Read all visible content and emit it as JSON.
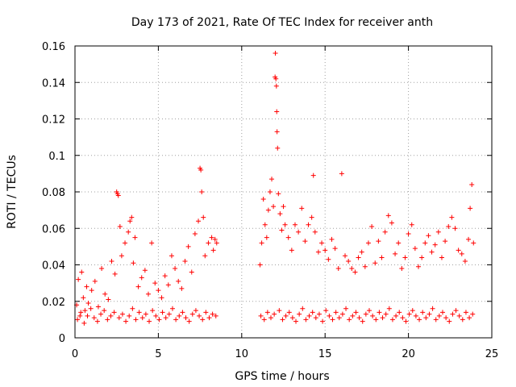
{
  "chart_data": {
    "type": "scatter",
    "title": "Day 173 of 2021, Rate Of TEC Index for receiver anth",
    "xlabel": "GPS time / hours",
    "ylabel": "ROTI / TECUs",
    "xlim": [
      0,
      25
    ],
    "ylim": [
      0,
      0.16
    ],
    "xticks": [
      0,
      5,
      10,
      15,
      20,
      25
    ],
    "xtick_labels": [
      "0",
      "5",
      "10",
      "15",
      "20",
      "25"
    ],
    "yticks": [
      0,
      0.02,
      0.04,
      0.06,
      0.08,
      0.1,
      0.12,
      0.14,
      0.16
    ],
    "ytick_labels": [
      "0",
      "0.02",
      "0.04",
      "0.06",
      "0.08",
      "0.1",
      "0.12",
      "0.14",
      "0.16"
    ],
    "grid": true,
    "marker": "+",
    "series": [
      {
        "name": "ROTI",
        "color": "#ff0000",
        "x": [
          0.1,
          0.2,
          0.3,
          0.4,
          0.5,
          0.6,
          0.7,
          0.8,
          1.0,
          1.2,
          1.4,
          1.6,
          1.8,
          2.0,
          2.2,
          2.4,
          2.5,
          2.55,
          2.6,
          2.7,
          2.8,
          3.0,
          3.2,
          3.3,
          3.4,
          3.5,
          3.6,
          3.8,
          4.0,
          4.2,
          4.4,
          4.6,
          4.8,
          5.0,
          5.2,
          5.4,
          5.6,
          5.8,
          6.0,
          6.2,
          6.4,
          6.6,
          6.8,
          7.0,
          7.2,
          7.4,
          7.5,
          7.55,
          7.6,
          7.7,
          7.8,
          8.0,
          8.2,
          8.3,
          8.4,
          8.5,
          0.15,
          0.35,
          0.55,
          0.75,
          0.95,
          1.15,
          1.35,
          1.55,
          1.75,
          1.95,
          2.15,
          2.35,
          2.65,
          2.85,
          3.05,
          3.25,
          3.45,
          3.65,
          3.85,
          4.05,
          4.25,
          4.45,
          4.65,
          4.85,
          5.05,
          5.25,
          5.45,
          5.65,
          5.85,
          6.05,
          6.25,
          6.45,
          6.65,
          6.85,
          7.05,
          7.25,
          7.45,
          7.65,
          7.85,
          8.05,
          8.25,
          8.45,
          11.1,
          11.2,
          11.3,
          11.4,
          11.5,
          11.6,
          11.7,
          11.8,
          11.9,
          12.0,
          12.02,
          12.05,
          12.08,
          12.1,
          12.12,
          12.15,
          12.2,
          12.3,
          12.4,
          12.5,
          12.6,
          12.8,
          13.0,
          13.2,
          13.4,
          13.6,
          13.8,
          14.0,
          14.2,
          14.3,
          14.4,
          14.6,
          14.8,
          15.0,
          15.2,
          15.4,
          15.6,
          15.8,
          16.0,
          16.2,
          16.4,
          16.6,
          16.8,
          17.0,
          17.2,
          17.4,
          17.6,
          17.8,
          18.0,
          18.2,
          18.4,
          18.6,
          18.8,
          19.0,
          19.2,
          19.4,
          19.6,
          19.8,
          20.0,
          20.2,
          20.4,
          20.6,
          20.8,
          21.0,
          21.2,
          21.4,
          21.6,
          21.8,
          22.0,
          22.2,
          22.4,
          22.6,
          22.8,
          23.0,
          23.2,
          23.4,
          23.6,
          23.7,
          23.8,
          23.9,
          11.15,
          11.35,
          11.55,
          11.75,
          11.95,
          12.25,
          12.45,
          12.65,
          12.85,
          13.05,
          13.25,
          13.45,
          13.65,
          13.85,
          14.05,
          14.25,
          14.45,
          14.65,
          14.85,
          15.05,
          15.25,
          15.45,
          15.65,
          15.85,
          16.05,
          16.25,
          16.45,
          16.65,
          16.85,
          17.05,
          17.25,
          17.45,
          17.65,
          17.85,
          18.05,
          18.25,
          18.45,
          18.65,
          18.85,
          19.05,
          19.25,
          19.45,
          19.65,
          19.85,
          20.05,
          20.25,
          20.45,
          20.65,
          20.85,
          21.05,
          21.25,
          21.45,
          21.65,
          21.85,
          22.05,
          22.25,
          22.45,
          22.65,
          22.85,
          23.05,
          23.25,
          23.45,
          23.65,
          23.85
        ],
        "y": [
          0.018,
          0.032,
          0.012,
          0.036,
          0.022,
          0.015,
          0.028,
          0.019,
          0.026,
          0.031,
          0.017,
          0.038,
          0.024,
          0.021,
          0.042,
          0.035,
          0.08,
          0.079,
          0.078,
          0.061,
          0.045,
          0.052,
          0.058,
          0.064,
          0.066,
          0.041,
          0.055,
          0.028,
          0.033,
          0.037,
          0.024,
          0.052,
          0.03,
          0.026,
          0.022,
          0.034,
          0.029,
          0.045,
          0.038,
          0.031,
          0.027,
          0.042,
          0.05,
          0.036,
          0.057,
          0.064,
          0.093,
          0.092,
          0.08,
          0.066,
          0.045,
          0.052,
          0.055,
          0.048,
          0.054,
          0.052,
          0.01,
          0.014,
          0.008,
          0.012,
          0.016,
          0.011,
          0.009,
          0.013,
          0.015,
          0.01,
          0.012,
          0.014,
          0.011,
          0.013,
          0.009,
          0.012,
          0.016,
          0.01,
          0.014,
          0.011,
          0.013,
          0.009,
          0.015,
          0.012,
          0.01,
          0.014,
          0.011,
          0.013,
          0.016,
          0.01,
          0.012,
          0.014,
          0.011,
          0.009,
          0.013,
          0.015,
          0.012,
          0.01,
          0.014,
          0.011,
          0.013,
          0.012,
          0.04,
          0.052,
          0.076,
          0.062,
          0.055,
          0.07,
          0.08,
          0.087,
          0.072,
          0.143,
          0.156,
          0.142,
          0.138,
          0.124,
          0.113,
          0.104,
          0.079,
          0.068,
          0.059,
          0.072,
          0.062,
          0.055,
          0.048,
          0.062,
          0.058,
          0.071,
          0.053,
          0.062,
          0.066,
          0.089,
          0.058,
          0.047,
          0.052,
          0.048,
          0.043,
          0.054,
          0.049,
          0.038,
          0.09,
          0.045,
          0.042,
          0.038,
          0.036,
          0.044,
          0.047,
          0.039,
          0.052,
          0.061,
          0.041,
          0.053,
          0.044,
          0.058,
          0.067,
          0.063,
          0.046,
          0.052,
          0.038,
          0.044,
          0.057,
          0.062,
          0.049,
          0.039,
          0.044,
          0.052,
          0.056,
          0.047,
          0.051,
          0.058,
          0.044,
          0.053,
          0.061,
          0.066,
          0.06,
          0.048,
          0.046,
          0.042,
          0.054,
          0.071,
          0.084,
          0.052,
          0.012,
          0.01,
          0.014,
          0.011,
          0.013,
          0.015,
          0.01,
          0.012,
          0.014,
          0.011,
          0.009,
          0.013,
          0.016,
          0.01,
          0.012,
          0.014,
          0.011,
          0.013,
          0.009,
          0.015,
          0.012,
          0.01,
          0.014,
          0.011,
          0.013,
          0.016,
          0.01,
          0.012,
          0.014,
          0.011,
          0.009,
          0.013,
          0.015,
          0.012,
          0.01,
          0.014,
          0.011,
          0.013,
          0.016,
          0.01,
          0.012,
          0.014,
          0.011,
          0.009,
          0.013,
          0.015,
          0.012,
          0.01,
          0.014,
          0.011,
          0.013,
          0.016,
          0.01,
          0.012,
          0.014,
          0.011,
          0.009,
          0.013,
          0.015,
          0.012,
          0.01,
          0.014,
          0.011,
          0.013
        ]
      }
    ]
  }
}
